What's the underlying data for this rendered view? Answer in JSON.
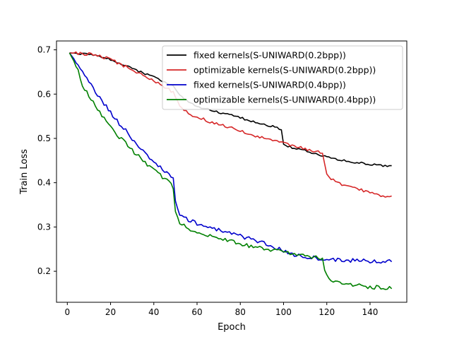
{
  "chart_data": {
    "type": "line",
    "title": "",
    "xlabel": "Epoch",
    "ylabel": "Train Loss",
    "xlim": [
      -5,
      157
    ],
    "ylim": [
      0.13,
      0.72
    ],
    "xticks": [
      0,
      20,
      40,
      60,
      80,
      100,
      120,
      140
    ],
    "yticks": [
      0.2,
      0.3,
      0.4,
      0.5,
      0.6,
      0.7
    ],
    "xtick_labels": [
      "0",
      "20",
      "40",
      "60",
      "80",
      "100",
      "120",
      "140"
    ],
    "ytick_labels": [
      "0.2",
      "0.3",
      "0.4",
      "0.5",
      "0.6",
      "0.7"
    ],
    "grid": false,
    "legend_position": "top-right",
    "series": [
      {
        "name": "fixed kernels(S-UNIWARD(0.2bpp))",
        "color": "#000000",
        "points": [
          [
            1,
            0.693
          ],
          [
            5,
            0.692
          ],
          [
            10,
            0.689
          ],
          [
            15,
            0.685
          ],
          [
            20,
            0.678
          ],
          [
            25,
            0.668
          ],
          [
            30,
            0.658
          ],
          [
            35,
            0.648
          ],
          [
            40,
            0.638
          ],
          [
            45,
            0.628
          ],
          [
            49,
            0.618
          ],
          [
            52,
            0.598
          ],
          [
            55,
            0.586
          ],
          [
            60,
            0.571
          ],
          [
            65,
            0.566
          ],
          [
            70,
            0.558
          ],
          [
            75,
            0.553
          ],
          [
            80,
            0.547
          ],
          [
            85,
            0.539
          ],
          [
            90,
            0.532
          ],
          [
            95,
            0.527
          ],
          [
            99,
            0.521
          ],
          [
            100,
            0.485
          ],
          [
            105,
            0.478
          ],
          [
            110,
            0.472
          ],
          [
            115,
            0.465
          ],
          [
            120,
            0.458
          ],
          [
            125,
            0.453
          ],
          [
            130,
            0.448
          ],
          [
            135,
            0.445
          ],
          [
            140,
            0.442
          ],
          [
            145,
            0.439
          ],
          [
            150,
            0.437
          ]
        ]
      },
      {
        "name": "optimizable kernels(S-UNIWARD(0.2bpp))",
        "color": "#d62728",
        "points": [
          [
            1,
            0.693
          ],
          [
            5,
            0.692
          ],
          [
            10,
            0.69
          ],
          [
            15,
            0.686
          ],
          [
            20,
            0.678
          ],
          [
            25,
            0.667
          ],
          [
            30,
            0.655
          ],
          [
            35,
            0.642
          ],
          [
            40,
            0.63
          ],
          [
            45,
            0.617
          ],
          [
            49,
            0.604
          ],
          [
            52,
            0.575
          ],
          [
            55,
            0.56
          ],
          [
            60,
            0.547
          ],
          [
            65,
            0.54
          ],
          [
            70,
            0.532
          ],
          [
            75,
            0.524
          ],
          [
            80,
            0.516
          ],
          [
            85,
            0.509
          ],
          [
            90,
            0.501
          ],
          [
            95,
            0.495
          ],
          [
            99,
            0.49
          ],
          [
            102,
            0.487
          ],
          [
            105,
            0.482
          ],
          [
            110,
            0.477
          ],
          [
            115,
            0.471
          ],
          [
            118,
            0.466
          ],
          [
            119,
            0.444
          ],
          [
            120,
            0.418
          ],
          [
            123,
            0.405
          ],
          [
            126,
            0.397
          ],
          [
            130,
            0.39
          ],
          [
            135,
            0.384
          ],
          [
            140,
            0.378
          ],
          [
            145,
            0.372
          ],
          [
            150,
            0.369
          ]
        ]
      },
      {
        "name": "fixed kernels(S-UNIWARD(0.4bpp))",
        "color": "#0000cc",
        "points": [
          [
            1,
            0.693
          ],
          [
            3,
            0.68
          ],
          [
            5,
            0.665
          ],
          [
            8,
            0.642
          ],
          [
            10,
            0.627
          ],
          [
            12,
            0.614
          ],
          [
            15,
            0.59
          ],
          [
            18,
            0.572
          ],
          [
            20,
            0.558
          ],
          [
            25,
            0.528
          ],
          [
            28,
            0.512
          ],
          [
            30,
            0.498
          ],
          [
            35,
            0.47
          ],
          [
            40,
            0.447
          ],
          [
            45,
            0.426
          ],
          [
            48,
            0.414
          ],
          [
            49,
            0.41
          ],
          [
            50,
            0.355
          ],
          [
            52,
            0.33
          ],
          [
            55,
            0.318
          ],
          [
            60,
            0.308
          ],
          [
            65,
            0.3
          ],
          [
            70,
            0.293
          ],
          [
            75,
            0.287
          ],
          [
            80,
            0.28
          ],
          [
            85,
            0.272
          ],
          [
            90,
            0.264
          ],
          [
            95,
            0.257
          ],
          [
            100,
            0.245
          ],
          [
            105,
            0.237
          ],
          [
            110,
            0.233
          ],
          [
            115,
            0.23
          ],
          [
            120,
            0.228
          ],
          [
            125,
            0.226
          ],
          [
            130,
            0.225
          ],
          [
            135,
            0.224
          ],
          [
            140,
            0.223
          ],
          [
            145,
            0.222
          ],
          [
            150,
            0.222
          ]
        ]
      },
      {
        "name": "optimizable kernels(S-UNIWARD(0.4bpp))",
        "color": "#008000",
        "points": [
          [
            1,
            0.693
          ],
          [
            3,
            0.675
          ],
          [
            5,
            0.655
          ],
          [
            7,
            0.62
          ],
          [
            10,
            0.598
          ],
          [
            12,
            0.58
          ],
          [
            15,
            0.558
          ],
          [
            18,
            0.54
          ],
          [
            20,
            0.524
          ],
          [
            25,
            0.498
          ],
          [
            28,
            0.485
          ],
          [
            30,
            0.472
          ],
          [
            35,
            0.45
          ],
          [
            40,
            0.43
          ],
          [
            45,
            0.408
          ],
          [
            48,
            0.398
          ],
          [
            49,
            0.39
          ],
          [
            50,
            0.335
          ],
          [
            52,
            0.31
          ],
          [
            55,
            0.298
          ],
          [
            60,
            0.289
          ],
          [
            65,
            0.282
          ],
          [
            70,
            0.275
          ],
          [
            75,
            0.268
          ],
          [
            80,
            0.262
          ],
          [
            85,
            0.257
          ],
          [
            90,
            0.252
          ],
          [
            95,
            0.247
          ],
          [
            100,
            0.243
          ],
          [
            105,
            0.24
          ],
          [
            110,
            0.235
          ],
          [
            115,
            0.231
          ],
          [
            118,
            0.228
          ],
          [
            119,
            0.2
          ],
          [
            120,
            0.188
          ],
          [
            123,
            0.18
          ],
          [
            126,
            0.175
          ],
          [
            130,
            0.171
          ],
          [
            135,
            0.168
          ],
          [
            140,
            0.165
          ],
          [
            145,
            0.163
          ],
          [
            150,
            0.161
          ]
        ]
      }
    ]
  }
}
